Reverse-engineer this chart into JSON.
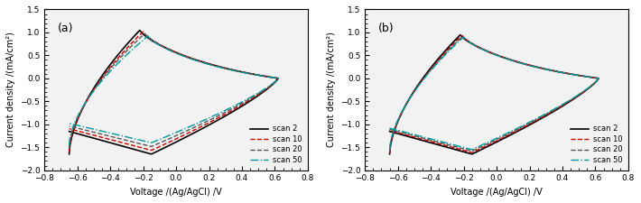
{
  "panel_a_label": "(a)",
  "panel_b_label": "(b)",
  "xlabel": "Voltage /(Ag/AgCl) /V",
  "ylabel": "Current density /(mA/cm²)",
  "xlim": [
    -0.8,
    0.8
  ],
  "ylim": [
    -2.0,
    1.5
  ],
  "xticks": [
    -0.8,
    -0.6,
    -0.4,
    -0.2,
    0,
    0.2,
    0.4,
    0.6,
    0.8
  ],
  "yticks": [
    -2.0,
    -1.5,
    -1.0,
    -0.5,
    0,
    0.5,
    1.0,
    1.5
  ],
  "legend_labels": [
    "scan 2",
    "scan 10",
    "scan 20",
    "scan 50"
  ],
  "colors": [
    "#000000",
    "#cc0000",
    "#555555",
    "#009999"
  ],
  "linestyles": [
    "-",
    "--",
    "--",
    "-."
  ],
  "linewidths": [
    1.2,
    1.0,
    1.0,
    1.0
  ],
  "bg_color": "#f0f0f0"
}
